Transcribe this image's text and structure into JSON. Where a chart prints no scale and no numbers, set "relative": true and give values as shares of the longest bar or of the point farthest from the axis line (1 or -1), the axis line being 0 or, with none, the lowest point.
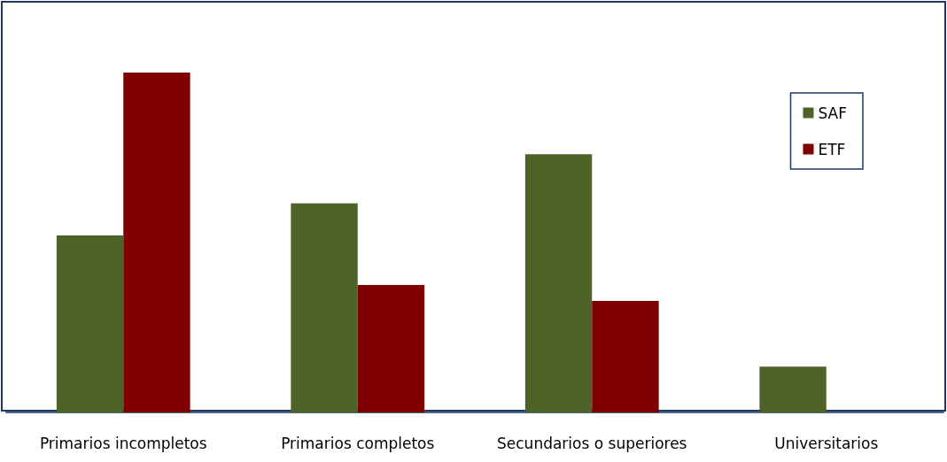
{
  "chart_data": {
    "type": "bar",
    "relative": true,
    "categories": [
      "Primarios incompletos",
      "Primarios completos",
      "Secundarios o superiores",
      "Universitarios"
    ],
    "series": [
      {
        "name": "SAF",
        "color": "#4f6228",
        "values": [
          0.521,
          0.615,
          0.76,
          0.135
        ]
      },
      {
        "name": "ETF",
        "color": "#7f0000",
        "values": [
          1,
          0.375,
          0.328,
          0
        ]
      }
    ],
    "legend": "top right"
  }
}
